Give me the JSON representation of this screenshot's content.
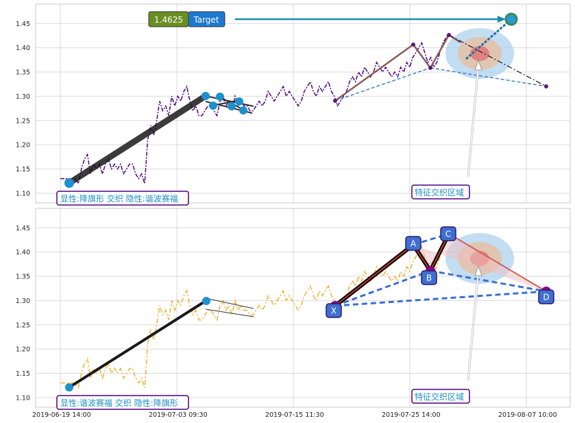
{
  "chart_data": [
    {
      "type": "line",
      "title": "",
      "ylim": [
        1.08,
        1.49
      ],
      "yticks": [
        "1.10",
        "1.15",
        "1.20",
        "1.25",
        "1.30",
        "1.35",
        "1.40",
        "1.45"
      ],
      "grid": true,
      "series_color": "#4b0082",
      "trendline_color": "#1a1a1a",
      "pattern_color": "#8b5a5a",
      "dotted_color": "#3a7fc1",
      "price_series": [
        1.13,
        1.13,
        1.13,
        1.13,
        1.13,
        1.13,
        1.12,
        1.15,
        1.17,
        1.18,
        1.14,
        1.16,
        1.15,
        1.16,
        1.14,
        1.16,
        1.17,
        1.15,
        1.16,
        1.15,
        1.16,
        1.14,
        1.15,
        1.16,
        1.16,
        1.14,
        1.13,
        1.14,
        1.12,
        1.21,
        1.24,
        1.22,
        1.25,
        1.29,
        1.27,
        1.28,
        1.26,
        1.3,
        1.28,
        1.3,
        1.29,
        1.31,
        1.32,
        1.29,
        1.27,
        1.28,
        1.26,
        1.26,
        1.27,
        1.28,
        1.28,
        1.27,
        1.26,
        1.29,
        1.3,
        1.28,
        1.29,
        1.27,
        1.3,
        1.28,
        1.29,
        1.28,
        1.28,
        1.27,
        1.27,
        1.28,
        1.29,
        1.28,
        1.29,
        1.31,
        1.3,
        1.29,
        1.3,
        1.31,
        1.32,
        1.3,
        1.31,
        1.3,
        1.29,
        1.28,
        1.29,
        1.31,
        1.32,
        1.33,
        1.31,
        1.3,
        1.32,
        1.31,
        1.32,
        1.33,
        1.31,
        1.3,
        1.28,
        1.29,
        1.3,
        1.31,
        1.33,
        1.34,
        1.33,
        1.35,
        1.34,
        1.36,
        1.35,
        1.34,
        1.35,
        1.37,
        1.36,
        1.35,
        1.36,
        1.35,
        1.34,
        1.35,
        1.34,
        1.36,
        1.35,
        1.37,
        1.36,
        1.38,
        1.39,
        1.4,
        1.41,
        1.39,
        1.37,
        1.38,
        1.36,
        1.37,
        1.39,
        1.41,
        1.42,
        1.43
      ],
      "annotations": {
        "left_label": "显性:降旗形 交织 隐性:谐波赛福",
        "zone_label": "特征交织区域",
        "target_value": "1.4625",
        "target_label": "Target"
      }
    },
    {
      "type": "line",
      "title": "",
      "ylim": [
        1.08,
        1.49
      ],
      "yticks": [
        "1.10",
        "1.15",
        "1.20",
        "1.25",
        "1.30",
        "1.35",
        "1.40",
        "1.45"
      ],
      "grid": true,
      "series_color": "#f0b030",
      "pattern_color": "#8b1a1a",
      "dotted_color": "#3a6fd6",
      "xtick_labels": [
        "2019-06-19 14:00",
        "2019-07-03 09:30",
        "2019-07-15 11:30",
        "2019-07-25 14:00",
        "2019-08-07 10:00"
      ],
      "annotations": {
        "left_label": "显性:谐波赛福 交织 隐性:降旗形",
        "zone_label": "特征交织区域",
        "points": [
          {
            "label": "X",
            "x": 2019.5744,
            "y": 1.29
          },
          {
            "label": "A",
            "x": 2019.5781,
            "y": 1.41
          },
          {
            "label": "B",
            "x": 2019.5795,
            "y": 1.36
          },
          {
            "label": "C",
            "x": 2019.5809,
            "y": 1.43
          },
          {
            "label": "D",
            "x": 2019.5884,
            "y": 1.32
          }
        ]
      }
    }
  ]
}
